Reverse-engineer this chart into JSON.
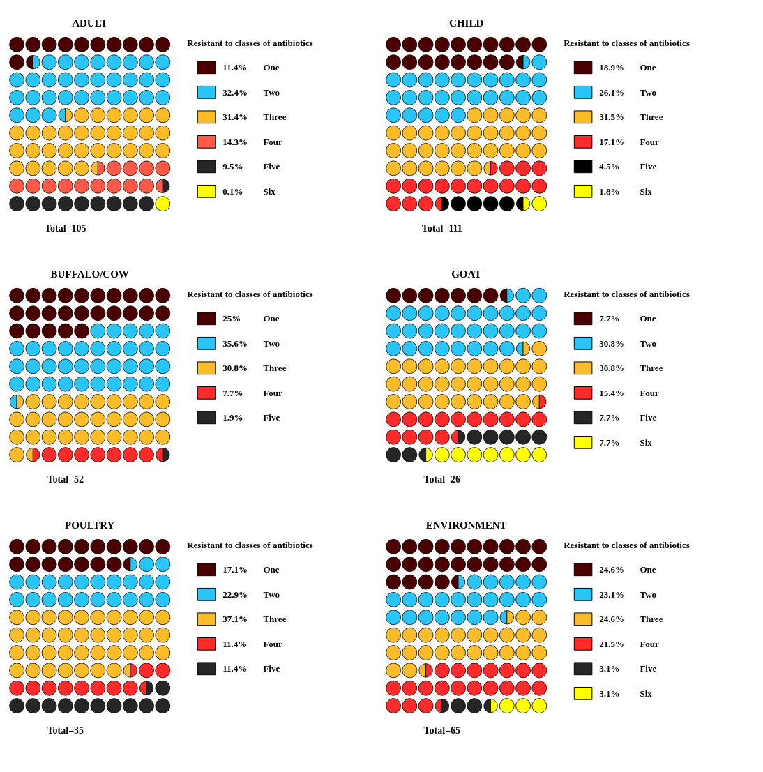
{
  "chart_data": [
    {
      "type": "other",
      "title": "ADULT",
      "legend_title": "Resistant to classes of antibiotics",
      "categories": [
        "One",
        "Two",
        "Three",
        "Four",
        "Five",
        "Six"
      ],
      "values": [
        11.4,
        32.4,
        31.4,
        14.3,
        9.5,
        0.1
      ],
      "value_labels": [
        "11.4%",
        "32.4%",
        "31.4%",
        "14.3%",
        "9.5%",
        "0.1%"
      ],
      "colors": [
        "#4a0000",
        "#29c5f6",
        "#fbbc2a",
        "#ff5a47",
        "#262626",
        "#ffff00"
      ],
      "annotations": [
        "Total=105"
      ]
    },
    {
      "type": "other",
      "title": "CHILD",
      "legend_title": "Resistant to classes of antibiotics",
      "categories": [
        "One",
        "Two",
        "Three",
        "Four",
        "Five",
        "Six"
      ],
      "values": [
        18.9,
        26.1,
        31.5,
        17.1,
        4.5,
        1.8
      ],
      "value_labels": [
        "18.9%",
        "26.1%",
        "31.5%",
        "17.1%",
        "4.5%",
        "1.8%"
      ],
      "colors": [
        "#4a0000",
        "#29c5f6",
        "#fbbc2a",
        "#ff2a2a",
        "#000000",
        "#ffff00"
      ],
      "annotations": [
        "Total=111"
      ]
    },
    {
      "type": "other",
      "title": "BUFFALO/COW",
      "legend_title": "Resistant to classes of antibiotics",
      "categories": [
        "One",
        "Two",
        "Three",
        "Four",
        "Five"
      ],
      "values": [
        25,
        35.6,
        30.8,
        7.7,
        1.9
      ],
      "value_labels": [
        "25%",
        "35.6%",
        "30.8%",
        "7.7%",
        "1.9%"
      ],
      "colors": [
        "#4a0000",
        "#29c5f6",
        "#fbbc2a",
        "#ff2a2a",
        "#262626"
      ],
      "annotations": [
        "Total=52"
      ]
    },
    {
      "type": "other",
      "title": "GOAT",
      "legend_title": "Resistant to classes of antibiotics",
      "categories": [
        "One",
        "Two",
        "Three",
        "Four",
        "Five",
        "Six"
      ],
      "values": [
        7.7,
        30.8,
        30.8,
        15.4,
        7.7,
        7.7
      ],
      "value_labels": [
        "7.7%",
        "30.8%",
        "30.8%",
        "15.4%",
        "7.7%",
        "7.7%"
      ],
      "colors": [
        "#4a0000",
        "#29c5f6",
        "#fbbc2a",
        "#ff2a2a",
        "#262626",
        "#ffff00"
      ],
      "annotations": [
        "Total=26"
      ]
    },
    {
      "type": "other",
      "title": "POULTRY",
      "legend_title": "Resistant to classes of antibiotics",
      "categories": [
        "One",
        "Two",
        "Three",
        "Four",
        "Five"
      ],
      "values": [
        17.1,
        22.9,
        37.1,
        11.4,
        11.4
      ],
      "value_labels": [
        "17.1%",
        "22.9%",
        "37.1%",
        "11.4%",
        "11.4%"
      ],
      "colors": [
        "#4a0000",
        "#29c5f6",
        "#fbbc2a",
        "#ff2a2a",
        "#262626"
      ],
      "annotations": [
        "Total=35"
      ]
    },
    {
      "type": "other",
      "title": "ENVIRONMENT",
      "legend_title": "Resistant to classes of antibiotics",
      "categories": [
        "One",
        "Two",
        "Three",
        "Four",
        "Five",
        "Six"
      ],
      "values": [
        24.6,
        23.1,
        24.6,
        21.5,
        3.1,
        3.1
      ],
      "value_labels": [
        "24.6%",
        "23.1%",
        "24.6%",
        "21.5%",
        "3.1%",
        "3.1%"
      ],
      "colors": [
        "#4a0000",
        "#29c5f6",
        "#fbbc2a",
        "#ff2a2a",
        "#262626",
        "#ffff00"
      ],
      "annotations": [
        "Total=65"
      ]
    }
  ]
}
